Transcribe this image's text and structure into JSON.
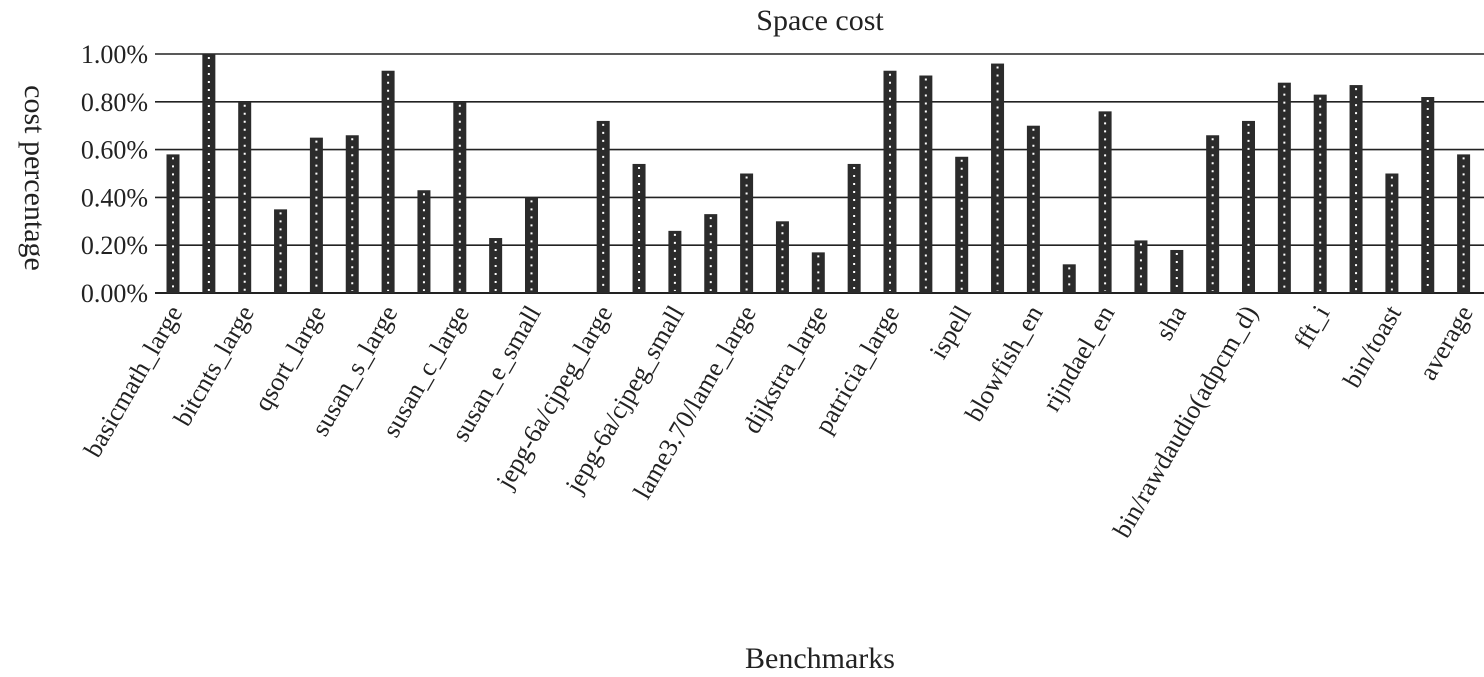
{
  "chart_data": {
    "type": "bar",
    "title": "Space cost",
    "xlabel": "Benchmarks",
    "ylabel": "cost percentage",
    "y_unit": "%",
    "ylim": [
      0,
      1.0
    ],
    "y_ticks": [
      "0.00%",
      "0.20%",
      "0.40%",
      "0.60%",
      "0.80%",
      "1.00%"
    ],
    "grid": true,
    "bar_color": "#2b2b2b",
    "categories": [
      "basicmath_large",
      "",
      "bitcnts_large",
      "",
      "qsort_large",
      "",
      "susan_s_large",
      "",
      "susan_c_large",
      "",
      "susan_e_small",
      "",
      "jepg-6a/cjpeg_large",
      "",
      "jepg-6a/cjpeg_small",
      "",
      "lame3.70/lame_large",
      "",
      "dijkstra_large",
      "",
      "patricia_large",
      "",
      "ispell",
      "",
      "blowfish_en",
      "",
      "rijndael_en",
      "",
      "sha",
      "",
      "bin/rawdaudio(adpcm_d)",
      "",
      "fft_i",
      "",
      "bin/toast",
      "",
      "average",
      ""
    ],
    "values": [
      0.58,
      1.0,
      0.8,
      0.35,
      0.65,
      0.66,
      0.93,
      0.43,
      0.8,
      0.23,
      0.4,
      0.0,
      0.72,
      0.54,
      0.26,
      0.33,
      0.5,
      0.3,
      0.17,
      0.54,
      0.93,
      0.91,
      0.57,
      0.96,
      0.7,
      0.12,
      0.76,
      0.22,
      0.18,
      0.66,
      0.72,
      0.88,
      0.83,
      0.87,
      0.5,
      0.82,
      0.58,
      0.0
    ]
  }
}
